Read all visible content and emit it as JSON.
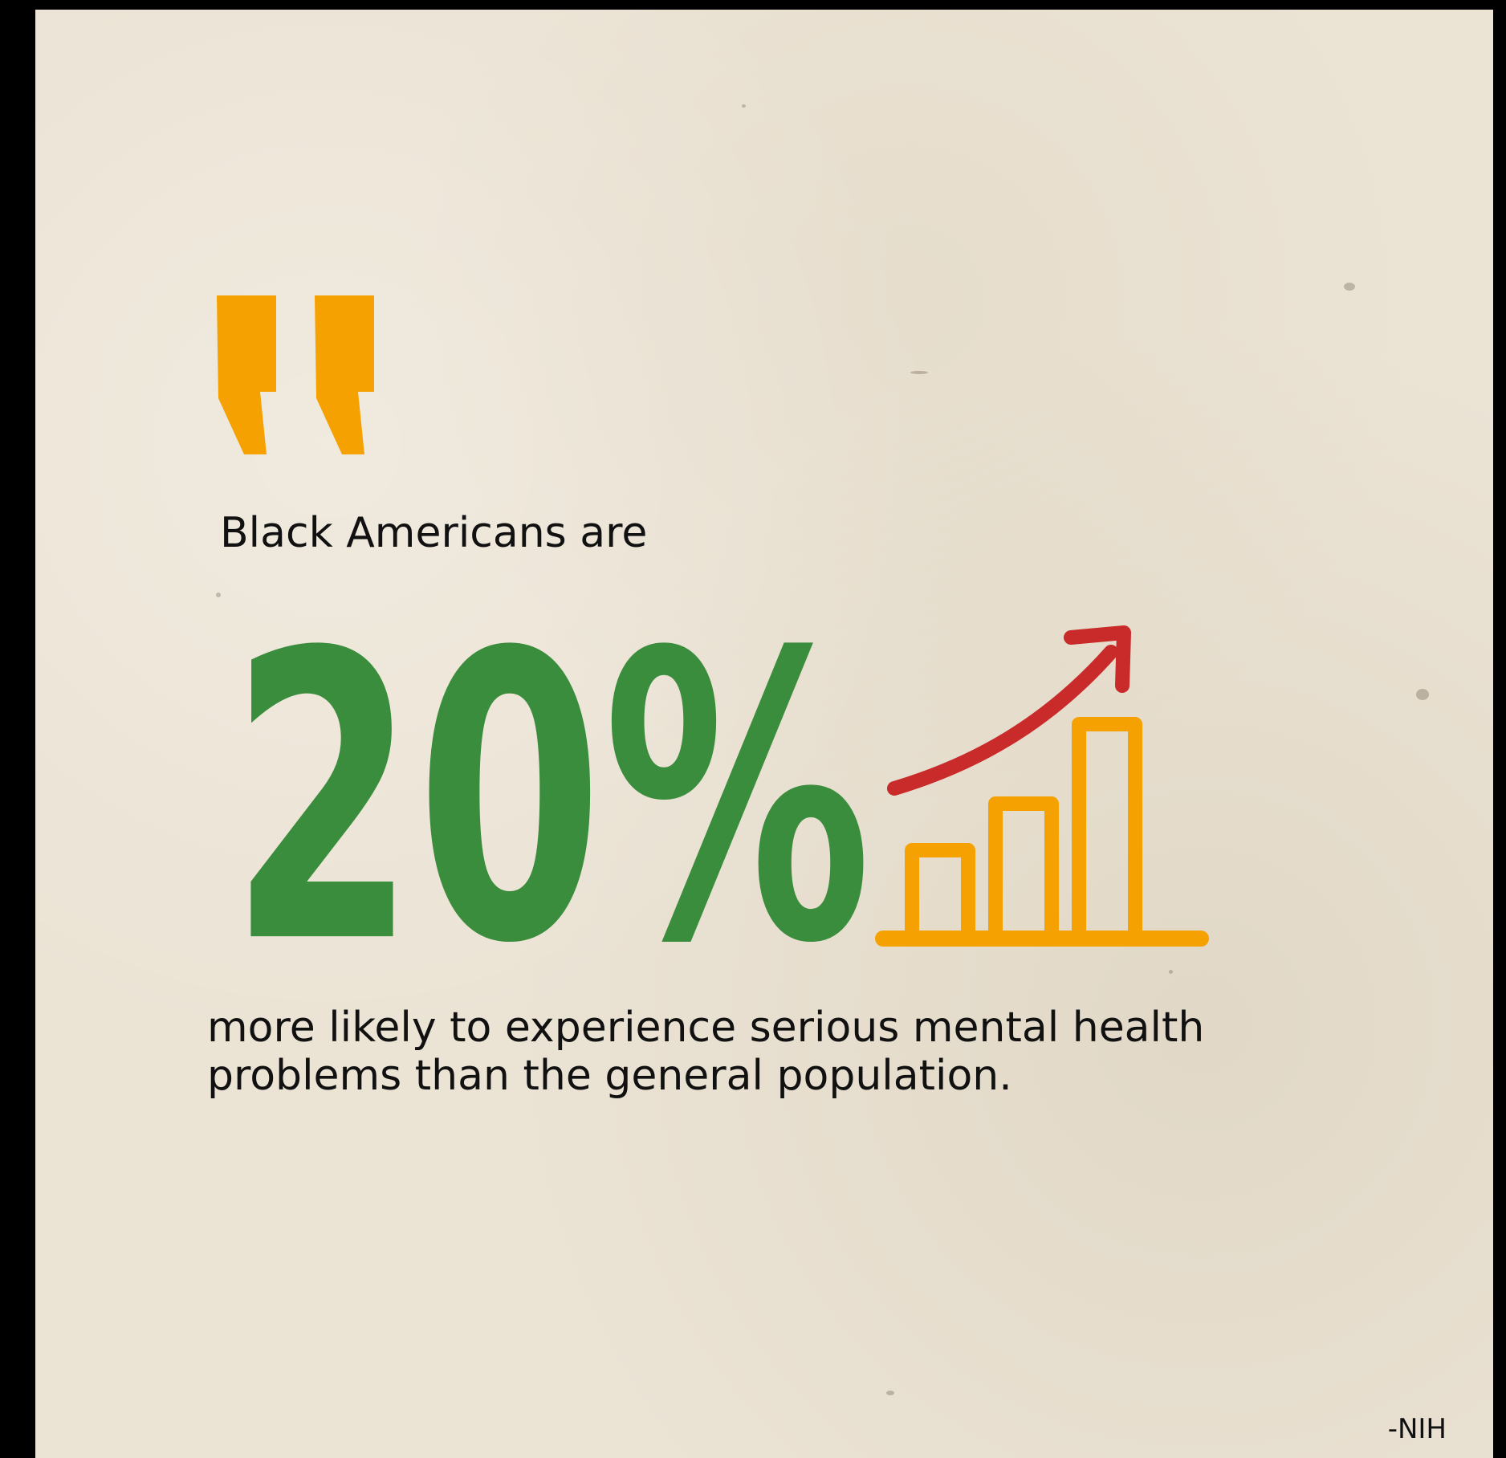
{
  "quote": {
    "lead": "Black Americans are",
    "stat": "20%",
    "body_lines": [
      "more likely to experience serious mental health",
      "problems than the general population."
    ],
    "source": "-NIH"
  },
  "icons": {
    "quote_mark": "quote-mark-icon",
    "growth_chart": "bar-chart-growth-icon"
  },
  "colors": {
    "background": "#ebe3d4",
    "quote_mark": "#f5a102",
    "stat": "#3a8d3c",
    "chart_bars": "#f5a102",
    "chart_arrow": "#c92a2a",
    "text": "#111111"
  }
}
